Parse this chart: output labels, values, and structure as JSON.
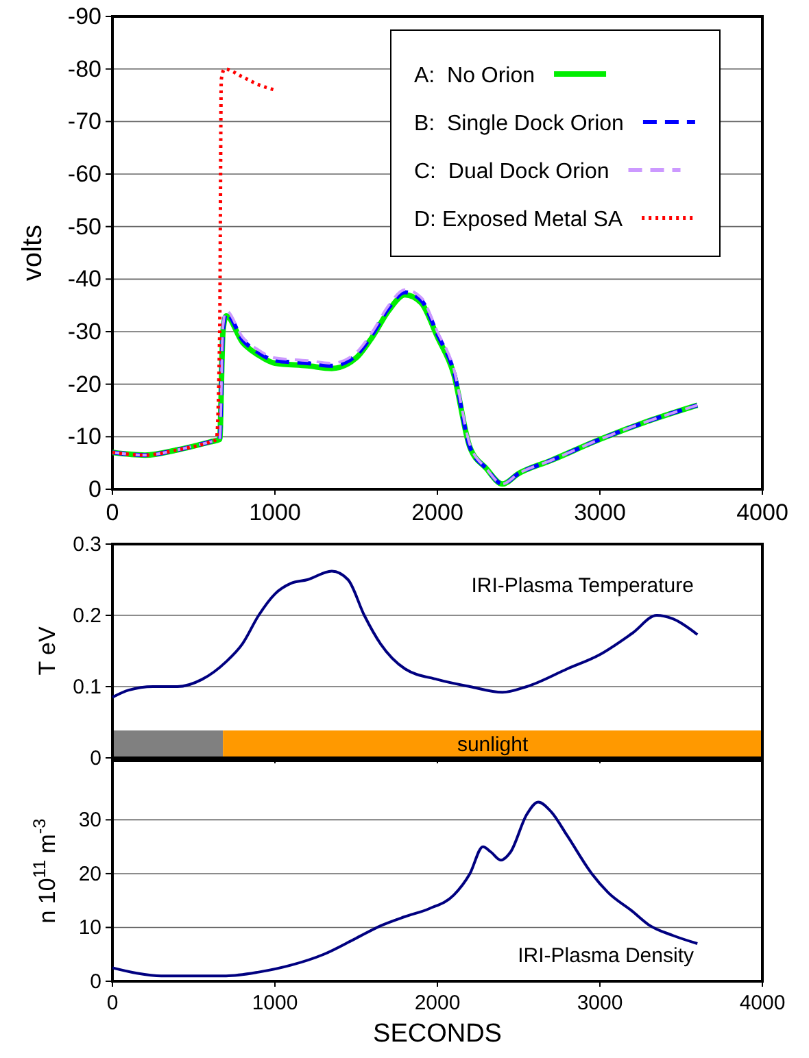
{
  "chart_data": [
    {
      "type": "line",
      "ylabel": "volts",
      "xlim": [
        0,
        4000
      ],
      "xticks": [
        0,
        1000,
        2000,
        3000,
        4000
      ],
      "ylim": [
        0,
        -90
      ],
      "yticks": [
        0,
        -10,
        -20,
        -30,
        -40,
        -50,
        -60,
        -70,
        -80,
        -90
      ],
      "grid": "y",
      "legend": "top right",
      "series": [
        {
          "name": "A:  No Orion",
          "color": "#00ee00",
          "line_style": "solid",
          "x": [
            0,
            200,
            400,
            600,
            660,
            680,
            700,
            800,
            900,
            1000,
            1200,
            1350,
            1500,
            1600,
            1700,
            1800,
            1900,
            2000,
            2100,
            2200,
            2300,
            2400,
            2500,
            2700,
            3000,
            3300,
            3600
          ],
          "values": [
            -7,
            -6.5,
            -7.5,
            -9,
            -9.5,
            -30,
            -33,
            -28,
            -25.5,
            -24,
            -23.5,
            -23,
            -25,
            -29,
            -34,
            -37,
            -35.5,
            -29,
            -22,
            -8,
            -4,
            -1,
            -3,
            -5.5,
            -9.5,
            -13,
            -16
          ]
        },
        {
          "name": "B:  Single Dock Orion",
          "color": "#0000ff",
          "line_style": "dashed",
          "x": [
            0,
            200,
            400,
            600,
            660,
            680,
            700,
            800,
            900,
            1000,
            1200,
            1350,
            1500,
            1600,
            1700,
            1800,
            1900,
            2000,
            2100,
            2200,
            2300,
            2400,
            2500,
            2700,
            3000,
            3300,
            3600
          ],
          "values": [
            -7,
            -6.5,
            -7.5,
            -9,
            -9.5,
            -30,
            -33.5,
            -28.5,
            -26,
            -24.5,
            -24,
            -23.5,
            -25.5,
            -29.5,
            -34.5,
            -37.5,
            -36,
            -29.5,
            -22.5,
            -8,
            -4,
            -1,
            -3,
            -5.5,
            -9.5,
            -13,
            -16
          ]
        },
        {
          "name": "C:  Dual Dock Orion",
          "color": "#cc99ff",
          "line_style": "dashed",
          "x": [
            0,
            200,
            400,
            600,
            660,
            680,
            700,
            800,
            900,
            1000,
            1200,
            1350,
            1500,
            1600,
            1700,
            1800,
            1900,
            2000,
            2100,
            2200,
            2300,
            2400,
            2500,
            2700,
            3000,
            3300,
            3600
          ],
          "values": [
            -7,
            -6.5,
            -7.5,
            -9,
            -9.5,
            -31,
            -34,
            -29,
            -26.5,
            -25,
            -24.5,
            -24,
            -26,
            -30,
            -35,
            -38,
            -36.5,
            -30,
            -23,
            -8.5,
            -4,
            -1,
            -3,
            -5.5,
            -9.5,
            -13,
            -16
          ]
        },
        {
          "name": "D: Exposed Metal SA",
          "color": "#ff0000",
          "line_style": "dotted",
          "x": [
            0,
            200,
            400,
            600,
            640,
            660,
            670,
            690,
            800,
            900,
            1000
          ],
          "values": [
            -7,
            -6.5,
            -7.5,
            -9,
            -9.5,
            -30,
            -78,
            -80,
            -78.5,
            -77,
            -76
          ]
        }
      ]
    },
    {
      "type": "line",
      "ylabel": "T eV",
      "annotations": [
        "IRI-Plasma Temperature"
      ],
      "xlim": [
        0,
        4000
      ],
      "xticks": [
        0,
        1000,
        2000,
        3000,
        4000
      ],
      "ylim": [
        0,
        0.3
      ],
      "yticks": [
        0,
        0.1,
        0.2,
        0.3
      ],
      "grid": "y",
      "tick_labels": "y",
      "bands": [
        {
          "axis": "x",
          "from": 0,
          "to": 680,
          "color": "#808080"
        },
        {
          "axis": "x",
          "from": 680,
          "to": 4000,
          "label": "sunlight",
          "color": "#ff9900"
        }
      ],
      "series": [
        {
          "color": "#000080",
          "x": [
            0,
            100,
            250,
            400,
            550,
            700,
            800,
            900,
            1000,
            1100,
            1200,
            1350,
            1450,
            1550,
            1650,
            1800,
            2000,
            2200,
            2400,
            2550,
            2800,
            3000,
            3200,
            3350,
            3450,
            3600
          ],
          "values": [
            0.085,
            0.095,
            0.1,
            0.1,
            0.11,
            0.135,
            0.16,
            0.2,
            0.23,
            0.245,
            0.25,
            0.262,
            0.25,
            0.2,
            0.16,
            0.125,
            0.11,
            0.1,
            0.092,
            0.1,
            0.125,
            0.145,
            0.175,
            0.2,
            0.195,
            0.173
          ]
        }
      ]
    },
    {
      "type": "line",
      "ylabel": "n  10$^{11}$ m$^{-3}$",
      "xlabel": "SECONDS",
      "annotations": [
        "IRI-Plasma Density"
      ],
      "xlim": [
        0,
        4000
      ],
      "xticks": [
        0,
        1000,
        2000,
        3000,
        4000
      ],
      "ylim": [
        0,
        41
      ],
      "yticks": [
        0,
        10,
        20,
        30
      ],
      "grid": "y",
      "series": [
        {
          "color": "#000080",
          "x": [
            0,
            150,
            300,
            700,
            900,
            1100,
            1300,
            1500,
            1650,
            1800,
            1950,
            2100,
            2200,
            2280,
            2330,
            2390,
            2450,
            2550,
            2620,
            2700,
            2800,
            2950,
            3050,
            3200,
            3300,
            3450,
            3600
          ],
          "values": [
            2.5,
            1.5,
            1,
            1,
            1.7,
            3,
            5,
            8,
            10.3,
            12,
            13.5,
            16,
            20,
            25,
            24,
            22.5,
            24,
            31,
            33.3,
            31.5,
            27,
            20,
            16.5,
            13,
            10.5,
            8.5,
            7
          ]
        }
      ]
    }
  ]
}
